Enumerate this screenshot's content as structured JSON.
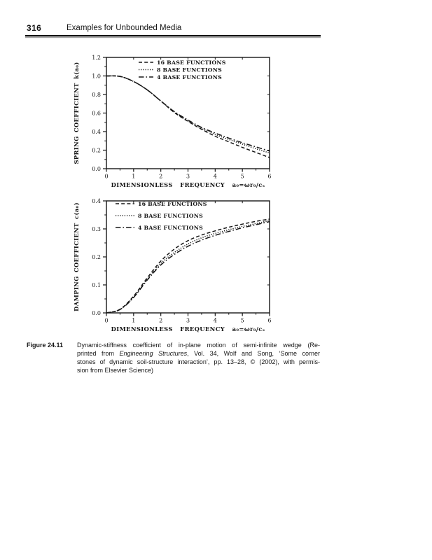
{
  "header": {
    "page_number": "316",
    "running_title": "Examples for Unbounded Media"
  },
  "figure_caption": {
    "label": "Figure 24.11",
    "lines": [
      [
        {
          "text": "Dynamic-stiffness coefficient of in-plane motion of semi-infinite wedge (Re-"
        }
      ],
      [
        {
          "text": "printed from "
        },
        {
          "text": "Engineering Structures",
          "italic": true
        },
        {
          "text": ", Vol. 34, Wolf and Song, ‘Some corner"
        }
      ],
      [
        {
          "text": "stones of dynamic soil-structure interaction’, pp. 13–28, © (2002), with permis-"
        }
      ],
      [
        {
          "text": "sion from Elsevier Science)"
        }
      ]
    ]
  },
  "chart_data": [
    {
      "type": "line",
      "title": "",
      "xlabel": "DIMENSIONLESS  FREQUENCY  a₀=ωr₀/cₛ",
      "ylabel": "SPRING COEFFICIENT k(a₀)",
      "xlim": [
        0,
        6
      ],
      "ylim": [
        0,
        1.2
      ],
      "xticks": [
        "0",
        "1",
        "2",
        "3",
        "4",
        "5",
        "6"
      ],
      "yticks": [
        "0.0",
        "0.2",
        "0.4",
        "0.6",
        "0.8",
        "1.0",
        "1.2"
      ],
      "grid": false,
      "legend_position": "upper center inside",
      "x": [
        0,
        0.5,
        1,
        1.5,
        2,
        2.5,
        3,
        3.5,
        4,
        4.5,
        5,
        5.5,
        6
      ],
      "series": [
        {
          "name": "16 BASE FUNCTIONS",
          "dash": "dashed",
          "values": [
            1.0,
            0.995,
            0.94,
            0.85,
            0.73,
            0.605,
            0.51,
            0.425,
            0.35,
            0.29,
            0.23,
            0.175,
            0.12
          ]
        },
        {
          "name": "8 BASE FUNCTIONS",
          "dash": "dotted",
          "values": [
            1.0,
            0.995,
            0.94,
            0.85,
            0.73,
            0.61,
            0.515,
            0.435,
            0.37,
            0.315,
            0.265,
            0.215,
            0.17
          ]
        },
        {
          "name": "4 BASE FUNCTIONS",
          "dash": "dashdot",
          "values": [
            1.0,
            0.995,
            0.94,
            0.85,
            0.73,
            0.615,
            0.525,
            0.445,
            0.385,
            0.33,
            0.28,
            0.235,
            0.19
          ]
        }
      ]
    },
    {
      "type": "line",
      "title": "",
      "xlabel": "DIMENSIONLESS  FREQUENCY  a₀=ωr₀/cₛ",
      "ylabel": "DAMPING COEFFICIENT c(a₀)",
      "xlim": [
        0,
        6
      ],
      "ylim": [
        0,
        0.4
      ],
      "xticks": [
        "0",
        "1",
        "2",
        "3",
        "4",
        "5",
        "6"
      ],
      "yticks": [
        "0.0",
        "0.1",
        "0.2",
        "0.3",
        "0.4"
      ],
      "grid": false,
      "legend_position": "upper left inside",
      "x": [
        0,
        0.5,
        1,
        1.5,
        2,
        2.5,
        3,
        3.5,
        4,
        4.5,
        5,
        5.5,
        6
      ],
      "series": [
        {
          "name": "16 BASE FUNCTIONS",
          "dash": "dashed",
          "values": [
            0,
            0.013,
            0.06,
            0.125,
            0.185,
            0.228,
            0.258,
            0.278,
            0.293,
            0.306,
            0.317,
            0.327,
            0.335
          ]
        },
        {
          "name": "8 BASE FUNCTIONS",
          "dash": "dotted",
          "values": [
            0,
            0.012,
            0.057,
            0.12,
            0.177,
            0.216,
            0.246,
            0.268,
            0.284,
            0.297,
            0.309,
            0.319,
            0.33
          ]
        },
        {
          "name": "4 BASE FUNCTIONS",
          "dash": "dashdot",
          "values": [
            0,
            0.012,
            0.055,
            0.117,
            0.171,
            0.209,
            0.238,
            0.26,
            0.277,
            0.291,
            0.304,
            0.315,
            0.326
          ]
        }
      ]
    }
  ],
  "ink_color": "#161616"
}
